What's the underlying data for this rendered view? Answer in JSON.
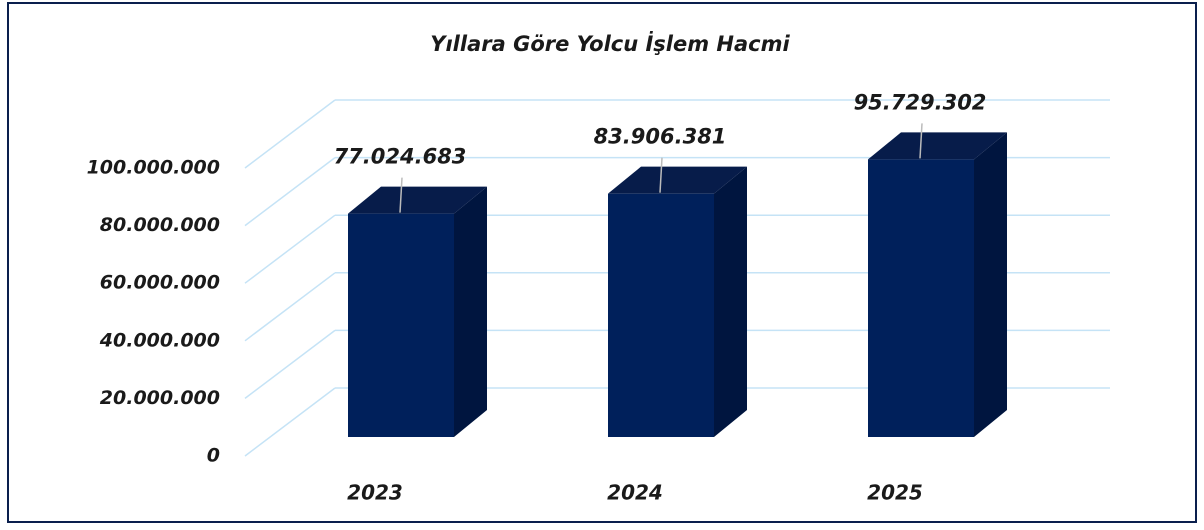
{
  "chart_data": {
    "type": "bar3d",
    "title": "Yıllara Göre Yolcu İşlem Hacmi",
    "categories": [
      "2023",
      "2024",
      "2025"
    ],
    "values": [
      77024683,
      83906381,
      95729302
    ],
    "value_labels": [
      "77.024.683",
      "83.906.381",
      "95.729.302"
    ],
    "color": "#00205b",
    "ylim": [
      0,
      100000000
    ],
    "yticks": [
      0,
      {
        "value": 20000000,
        "label": "20.000.000"
      },
      {
        "value": 40000000,
        "label": "40.000.000"
      },
      {
        "value": 60000000,
        "label": "60.000.000"
      },
      {
        "value": 80000000,
        "label": "80.000.000"
      },
      {
        "value": 100000000,
        "label": "100.000.000"
      }
    ],
    "grid": true
  }
}
